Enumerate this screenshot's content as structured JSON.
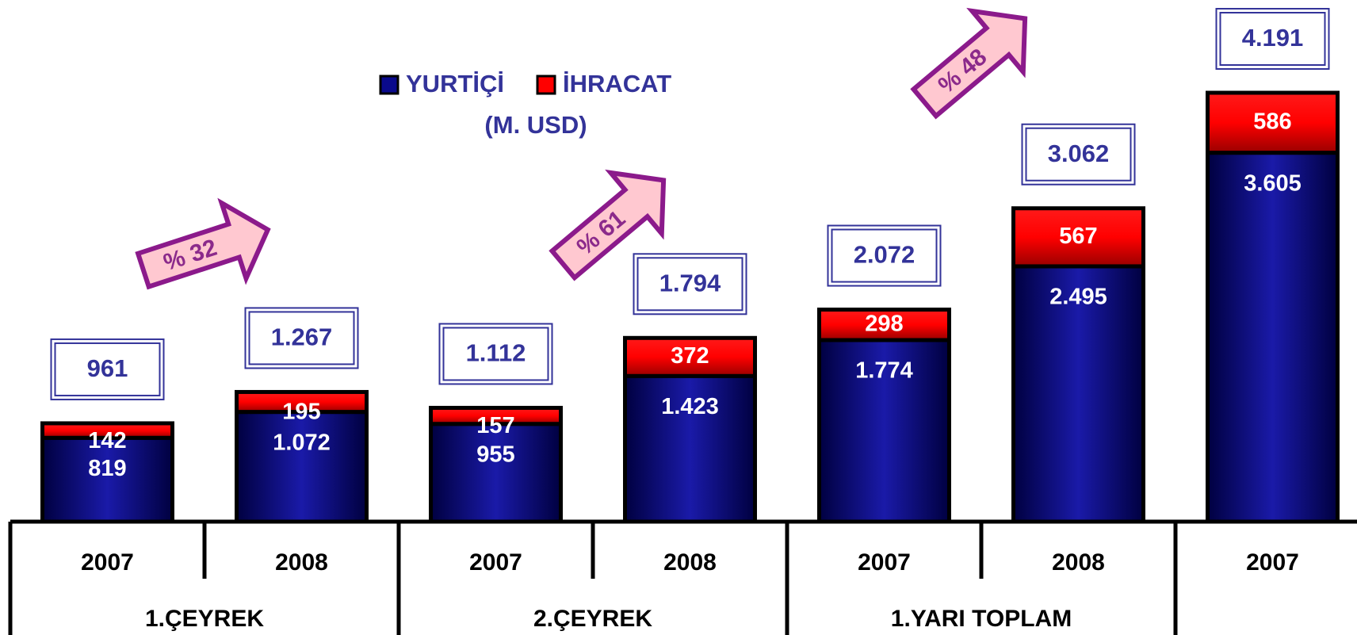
{
  "chart_data": {
    "type": "stacked-bar",
    "title": "(M. USD)",
    "categories": [
      "2007",
      "2008",
      "2007",
      "2008",
      "2007",
      "2008",
      "2007"
    ],
    "group_labels": [
      "1.ÇEYREK",
      "2.ÇEYREK",
      "1.YARI TOPLAM"
    ],
    "series": [
      {
        "name": "YURTİÇİ",
        "color": "#0a0a8c",
        "values": [
          819,
          1072,
          955,
          1423,
          1774,
          2495,
          3605
        ],
        "value_labels": [
          "819",
          "1.072",
          "955",
          "1.423",
          "1.774",
          "2.495",
          "3.605"
        ]
      },
      {
        "name": "İHRACAT",
        "color": "#ff0000",
        "values": [
          142,
          195,
          157,
          372,
          298,
          567,
          586
        ],
        "value_labels": [
          "142",
          "195",
          "157",
          "372",
          "298",
          "567",
          "586"
        ]
      }
    ],
    "totals": {
      "values": [
        961,
        1267,
        1112,
        1794,
        2072,
        3062,
        4191
      ],
      "value_labels": [
        "961",
        "1.267",
        "1.112",
        "1.794",
        "2.072",
        "3.062",
        "4.191"
      ]
    },
    "annotations": [
      "% 32",
      "% 61",
      "% 48"
    ]
  }
}
